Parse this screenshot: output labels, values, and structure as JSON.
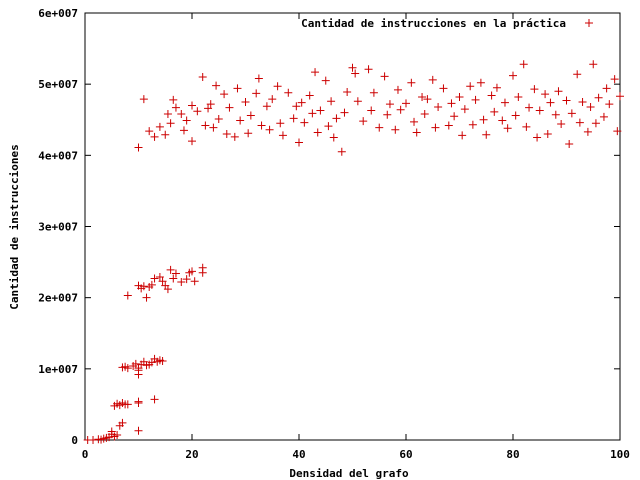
{
  "chart_data": {
    "type": "scatter",
    "title": "",
    "xlabel": "Densidad del grafo",
    "ylabel": "Cantidad de instrucciones",
    "xlim": [
      0,
      100
    ],
    "ylim": [
      0,
      60000000
    ],
    "x_ticks": [
      0,
      20,
      40,
      60,
      80,
      100
    ],
    "x_tick_labels": [
      "0",
      "20",
      "40",
      "60",
      "80",
      "100"
    ],
    "y_ticks": [
      0,
      10000000,
      20000000,
      30000000,
      40000000,
      50000000,
      60000000
    ],
    "y_tick_labels": [
      "0",
      "1e+007",
      "2e+007",
      "3e+007",
      "4e+007",
      "5e+007",
      "6e+007"
    ],
    "grid": false,
    "legend_position": "top-right",
    "series": [
      {
        "name": "Cantidad de instrucciones en la práctica",
        "color": "#cc0000",
        "marker": "plus",
        "points": [
          [
            0.5,
            0
          ],
          [
            1.5,
            0
          ],
          [
            2.5,
            100000
          ],
          [
            3,
            50000
          ],
          [
            3.5,
            200000
          ],
          [
            4,
            300000
          ],
          [
            4.5,
            400000
          ],
          [
            5,
            800000
          ],
          [
            5,
            1200000
          ],
          [
            5.5,
            500000
          ],
          [
            6,
            700000
          ],
          [
            6.5,
            2000000
          ],
          [
            7,
            2400000
          ],
          [
            5.5,
            4800000
          ],
          [
            6,
            5100000
          ],
          [
            6.5,
            4900000
          ],
          [
            7,
            5200000
          ],
          [
            7.5,
            5000000
          ],
          [
            8,
            5000000
          ],
          [
            10,
            1300000
          ],
          [
            10,
            5200000
          ],
          [
            10,
            5400000
          ],
          [
            13,
            5700000
          ],
          [
            7,
            10200000
          ],
          [
            7.5,
            10300000
          ],
          [
            8,
            10100000
          ],
          [
            9,
            10400000
          ],
          [
            9.5,
            10700000
          ],
          [
            10,
            9200000
          ],
          [
            10,
            9800000
          ],
          [
            10,
            10100000
          ],
          [
            10.5,
            10600000
          ],
          [
            11,
            11000000
          ],
          [
            11.5,
            10500000
          ],
          [
            12,
            10600000
          ],
          [
            12.5,
            10900000
          ],
          [
            13,
            11400000
          ],
          [
            13.5,
            11000000
          ],
          [
            14,
            11200000
          ],
          [
            14.5,
            11100000
          ],
          [
            8,
            20300000
          ],
          [
            10,
            21700000
          ],
          [
            10.5,
            21300000
          ],
          [
            11,
            21600000
          ],
          [
            11.5,
            20000000
          ],
          [
            12,
            21500000
          ],
          [
            12.5,
            21800000
          ],
          [
            13,
            22700000
          ],
          [
            14,
            22900000
          ],
          [
            14.5,
            22300000
          ],
          [
            15,
            21700000
          ],
          [
            15.5,
            21200000
          ],
          [
            16,
            23900000
          ],
          [
            16.5,
            22700000
          ],
          [
            17,
            23400000
          ],
          [
            18,
            22200000
          ],
          [
            19,
            22600000
          ],
          [
            19.5,
            23500000
          ],
          [
            20,
            23700000
          ],
          [
            20.5,
            22300000
          ],
          [
            22,
            23500000
          ],
          [
            22,
            24200000
          ],
          [
            10,
            41100000
          ],
          [
            11,
            47900000
          ],
          [
            12,
            43400000
          ],
          [
            13,
            42600000
          ],
          [
            14,
            44000000
          ],
          [
            15,
            42900000
          ],
          [
            15.5,
            45800000
          ],
          [
            16,
            44500000
          ],
          [
            16.5,
            47800000
          ],
          [
            17,
            46700000
          ],
          [
            18,
            45800000
          ],
          [
            18.5,
            43500000
          ],
          [
            19,
            44900000
          ],
          [
            20,
            47000000
          ],
          [
            20,
            42000000
          ],
          [
            21,
            46200000
          ],
          [
            22,
            51000000
          ],
          [
            22.5,
            44200000
          ],
          [
            23,
            46600000
          ],
          [
            23.5,
            47200000
          ],
          [
            24,
            43900000
          ],
          [
            24.5,
            49800000
          ],
          [
            25,
            45100000
          ],
          [
            26,
            48600000
          ],
          [
            26.5,
            43000000
          ],
          [
            27,
            46700000
          ],
          [
            28,
            42600000
          ],
          [
            28.5,
            49400000
          ],
          [
            29,
            44900000
          ],
          [
            30,
            47500000
          ],
          [
            30.5,
            43100000
          ],
          [
            31,
            45600000
          ],
          [
            32,
            48700000
          ],
          [
            32.5,
            50800000
          ],
          [
            33,
            44200000
          ],
          [
            34,
            46900000
          ],
          [
            34.5,
            43600000
          ],
          [
            35,
            47900000
          ],
          [
            36,
            49700000
          ],
          [
            36.5,
            44500000
          ],
          [
            37,
            42800000
          ],
          [
            38,
            48800000
          ],
          [
            39,
            45200000
          ],
          [
            39.5,
            46900000
          ],
          [
            40,
            41800000
          ],
          [
            40.5,
            47400000
          ],
          [
            41,
            44600000
          ],
          [
            42,
            48400000
          ],
          [
            42.5,
            45900000
          ],
          [
            43,
            51700000
          ],
          [
            43.5,
            43200000
          ],
          [
            44,
            46300000
          ],
          [
            45,
            50500000
          ],
          [
            45.5,
            44100000
          ],
          [
            46,
            47600000
          ],
          [
            46.5,
            42500000
          ],
          [
            47,
            45200000
          ],
          [
            48,
            40500000
          ],
          [
            48.5,
            46000000
          ],
          [
            49,
            48900000
          ],
          [
            50,
            52300000
          ],
          [
            50.5,
            51500000
          ],
          [
            51,
            47600000
          ],
          [
            52,
            44800000
          ],
          [
            53,
            52100000
          ],
          [
            53.5,
            46300000
          ],
          [
            54,
            48800000
          ],
          [
            55,
            43900000
          ],
          [
            56,
            51100000
          ],
          [
            56.5,
            45700000
          ],
          [
            57,
            47200000
          ],
          [
            58,
            43600000
          ],
          [
            58.5,
            49200000
          ],
          [
            59,
            46400000
          ],
          [
            60,
            47300000
          ],
          [
            61,
            50200000
          ],
          [
            61.5,
            44700000
          ],
          [
            62,
            43200000
          ],
          [
            63,
            48200000
          ],
          [
            63.5,
            45800000
          ],
          [
            64,
            47900000
          ],
          [
            65,
            50600000
          ],
          [
            65.5,
            43900000
          ],
          [
            66,
            46800000
          ],
          [
            67,
            49400000
          ],
          [
            68,
            44200000
          ],
          [
            68.5,
            47300000
          ],
          [
            69,
            45500000
          ],
          [
            70,
            48200000
          ],
          [
            70.5,
            42800000
          ],
          [
            71,
            46500000
          ],
          [
            72,
            49700000
          ],
          [
            72.5,
            44300000
          ],
          [
            73,
            47800000
          ],
          [
            74,
            50200000
          ],
          [
            74.5,
            45000000
          ],
          [
            75,
            42900000
          ],
          [
            76,
            48400000
          ],
          [
            76.5,
            46100000
          ],
          [
            77,
            49500000
          ],
          [
            78,
            44900000
          ],
          [
            78.5,
            47400000
          ],
          [
            79,
            43800000
          ],
          [
            80,
            51200000
          ],
          [
            80.5,
            45600000
          ],
          [
            81,
            48200000
          ],
          [
            82,
            52800000
          ],
          [
            82.5,
            44000000
          ],
          [
            83,
            46700000
          ],
          [
            84,
            49300000
          ],
          [
            84.5,
            42500000
          ],
          [
            85,
            46300000
          ],
          [
            86,
            48600000
          ],
          [
            86.5,
            43000000
          ],
          [
            87,
            47400000
          ],
          [
            88,
            45700000
          ],
          [
            88.5,
            49000000
          ],
          [
            89,
            44400000
          ],
          [
            90,
            47700000
          ],
          [
            90.5,
            41600000
          ],
          [
            91,
            45900000
          ],
          [
            92,
            51400000
          ],
          [
            92.5,
            44600000
          ],
          [
            93,
            47500000
          ],
          [
            94,
            43300000
          ],
          [
            94.5,
            46800000
          ],
          [
            95,
            52800000
          ],
          [
            95.5,
            44500000
          ],
          [
            96,
            48100000
          ],
          [
            97,
            45400000
          ],
          [
            97.5,
            49400000
          ],
          [
            98,
            47200000
          ],
          [
            99,
            50700000
          ],
          [
            99.5,
            43400000
          ],
          [
            100,
            48300000
          ]
        ]
      }
    ]
  }
}
